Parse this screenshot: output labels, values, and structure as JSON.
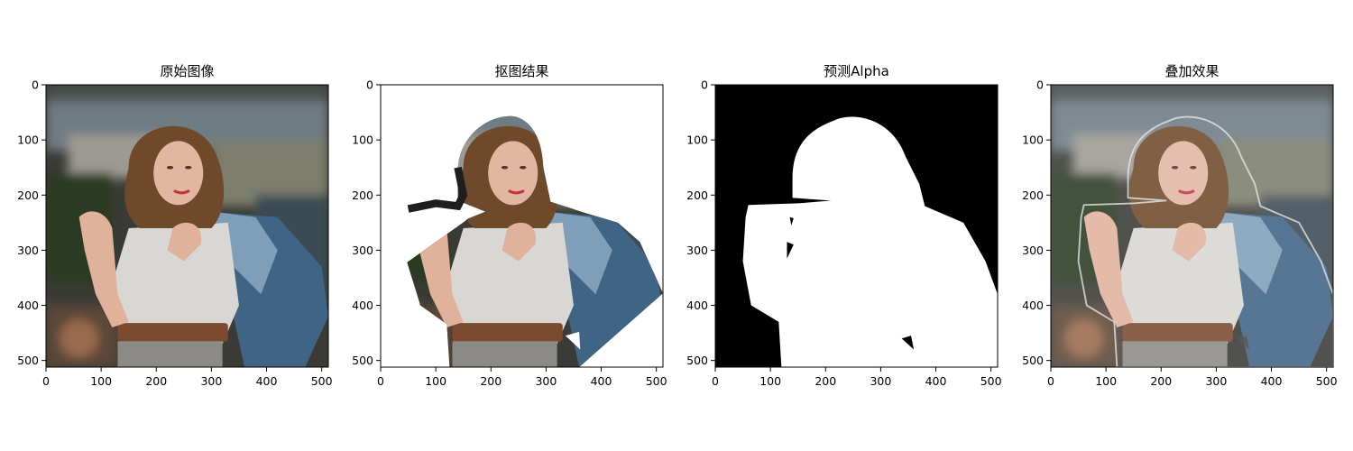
{
  "figure": {
    "panels": [
      {
        "id": "original",
        "title": "原始图像",
        "image": "portrait-photo",
        "x_ticks": [
          "0",
          "100",
          "200",
          "300",
          "400",
          "500"
        ],
        "y_ticks": [
          "0",
          "100",
          "200",
          "300",
          "400",
          "500"
        ]
      },
      {
        "id": "cutout",
        "title": "抠图结果",
        "image": "foreground-cutout-on-white",
        "x_ticks": [
          "0",
          "100",
          "200",
          "300",
          "400",
          "500"
        ],
        "y_ticks": [
          "0",
          "100",
          "200",
          "300",
          "400",
          "500"
        ]
      },
      {
        "id": "alpha",
        "title": "预测Alpha",
        "image": "alpha-matte",
        "x_ticks": [
          "0",
          "100",
          "200",
          "300",
          "400",
          "500"
        ],
        "y_ticks": [
          "0",
          "100",
          "200",
          "300",
          "400",
          "500"
        ]
      },
      {
        "id": "overlay",
        "title": "叠加效果",
        "image": "overlay-outline-on-photo",
        "x_ticks": [
          "0",
          "100",
          "200",
          "300",
          "400",
          "500"
        ],
        "y_ticks": [
          "0",
          "100",
          "200",
          "300",
          "400",
          "500"
        ]
      }
    ],
    "colors": {
      "bg_dark": "#2b2a27",
      "bg_sky": "#6e7c84",
      "skin": "#e5b9a3",
      "hair": "#6e4a2b",
      "shirt": "#dddbd8",
      "jacket": "#456b8f",
      "belt": "#7b4a2f",
      "alpha_fg": "#ffffff",
      "alpha_bg": "#000000"
    }
  }
}
